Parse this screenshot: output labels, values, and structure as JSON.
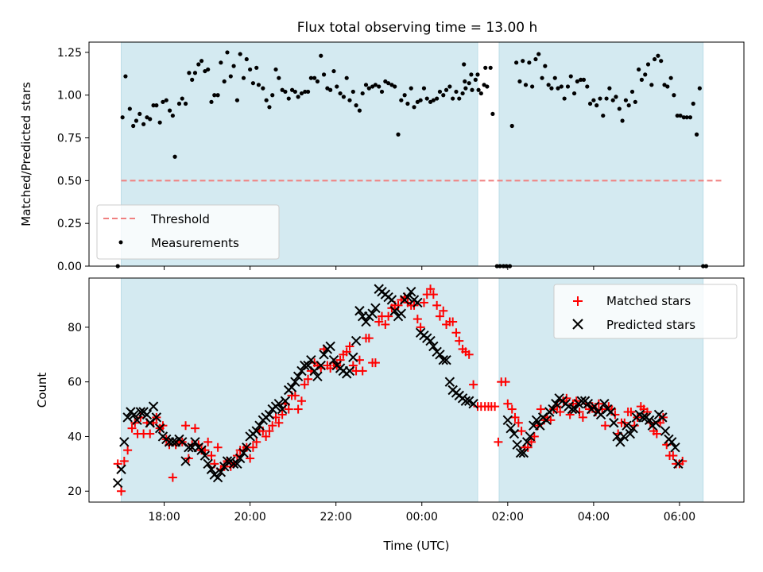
{
  "chart_data": [
    {
      "type": "scatter",
      "title": "Flux total observing time = 13.00 h",
      "xlabel": "",
      "ylabel": "Matched/Predicted stars",
      "xlim": [
        16.25,
        31.5
      ],
      "ylim": [
        0.0,
        1.31
      ],
      "yticks": [
        0.0,
        0.25,
        0.5,
        0.75,
        1.0,
        1.25
      ],
      "ytick_labels": [
        "0.00",
        "0.25",
        "0.50",
        "0.75",
        "1.00",
        "1.25"
      ],
      "xticks": [
        18,
        20,
        22,
        24,
        26,
        28,
        30
      ],
      "shaded_spans": [
        [
          17.0,
          25.3
        ],
        [
          25.8,
          30.55
        ]
      ],
      "threshold": {
        "name": "Threshold",
        "value": 0.5,
        "x_range": [
          17.0,
          31.0
        ],
        "color": "#f08080"
      },
      "legend_position": "lower-left",
      "series": [
        {
          "name": "Measurements",
          "marker": "dot",
          "color": "#000000",
          "points": [
            [
              16.92,
              0.0
            ],
            [
              17.03,
              0.87
            ],
            [
              17.1,
              1.11
            ],
            [
              17.2,
              0.92
            ],
            [
              17.28,
              0.82
            ],
            [
              17.35,
              0.85
            ],
            [
              17.43,
              0.89
            ],
            [
              17.52,
              0.83
            ],
            [
              17.6,
              0.87
            ],
            [
              17.67,
              0.86
            ],
            [
              17.75,
              0.94
            ],
            [
              17.82,
              0.94
            ],
            [
              17.9,
              0.84
            ],
            [
              17.97,
              0.96
            ],
            [
              18.05,
              0.97
            ],
            [
              18.13,
              0.91
            ],
            [
              18.2,
              0.88
            ],
            [
              18.25,
              0.64
            ],
            [
              18.35,
              0.95
            ],
            [
              18.42,
              0.98
            ],
            [
              18.5,
              0.95
            ],
            [
              18.58,
              1.13
            ],
            [
              18.65,
              1.09
            ],
            [
              18.72,
              1.13
            ],
            [
              18.8,
              1.18
            ],
            [
              18.87,
              1.2
            ],
            [
              18.95,
              1.14
            ],
            [
              19.02,
              1.15
            ],
            [
              19.1,
              0.96
            ],
            [
              19.17,
              1.0
            ],
            [
              19.25,
              1.0
            ],
            [
              19.32,
              1.19
            ],
            [
              19.4,
              1.08
            ],
            [
              19.47,
              1.25
            ],
            [
              19.55,
              1.11
            ],
            [
              19.62,
              1.17
            ],
            [
              19.7,
              0.97
            ],
            [
              19.77,
              1.24
            ],
            [
              19.85,
              1.1
            ],
            [
              19.92,
              1.21
            ],
            [
              20.0,
              1.15
            ],
            [
              20.07,
              1.07
            ],
            [
              20.15,
              1.16
            ],
            [
              20.2,
              1.06
            ],
            [
              20.3,
              1.04
            ],
            [
              20.38,
              0.97
            ],
            [
              20.45,
              0.93
            ],
            [
              20.52,
              1.0
            ],
            [
              20.6,
              1.15
            ],
            [
              20.67,
              1.1
            ],
            [
              20.75,
              1.03
            ],
            [
              20.82,
              1.02
            ],
            [
              20.9,
              0.98
            ],
            [
              20.98,
              1.03
            ],
            [
              21.05,
              1.02
            ],
            [
              21.12,
              0.99
            ],
            [
              21.2,
              1.01
            ],
            [
              21.28,
              1.02
            ],
            [
              21.35,
              1.02
            ],
            [
              21.42,
              1.1
            ],
            [
              21.5,
              1.1
            ],
            [
              21.57,
              1.08
            ],
            [
              21.65,
              1.23
            ],
            [
              21.72,
              1.12
            ],
            [
              21.8,
              1.04
            ],
            [
              21.87,
              1.03
            ],
            [
              21.95,
              1.14
            ],
            [
              22.02,
              1.05
            ],
            [
              22.1,
              1.01
            ],
            [
              22.18,
              0.99
            ],
            [
              22.25,
              1.1
            ],
            [
              22.32,
              0.97
            ],
            [
              22.4,
              1.02
            ],
            [
              22.47,
              0.94
            ],
            [
              22.55,
              0.91
            ],
            [
              22.62,
              1.01
            ],
            [
              22.7,
              1.06
            ],
            [
              22.77,
              1.04
            ],
            [
              22.85,
              1.05
            ],
            [
              22.92,
              1.06
            ],
            [
              23.0,
              1.05
            ],
            [
              23.07,
              1.02
            ],
            [
              23.15,
              1.08
            ],
            [
              23.22,
              1.07
            ],
            [
              23.3,
              1.06
            ],
            [
              23.37,
              1.05
            ],
            [
              23.45,
              0.77
            ],
            [
              23.52,
              0.97
            ],
            [
              23.6,
              1.0
            ],
            [
              23.67,
              0.95
            ],
            [
              23.75,
              1.04
            ],
            [
              23.82,
              0.93
            ],
            [
              23.9,
              0.96
            ],
            [
              23.97,
              0.97
            ],
            [
              24.05,
              1.04
            ],
            [
              24.12,
              0.98
            ],
            [
              24.2,
              0.96
            ],
            [
              24.27,
              0.97
            ],
            [
              24.35,
              0.98
            ],
            [
              24.42,
              1.02
            ],
            [
              24.5,
              1.0
            ],
            [
              24.57,
              1.03
            ],
            [
              24.65,
              1.05
            ],
            [
              24.72,
              0.98
            ],
            [
              24.8,
              1.02
            ],
            [
              24.87,
              0.98
            ],
            [
              24.95,
              1.01
            ],
            [
              25.02,
              1.04
            ],
            [
              25.1,
              1.07
            ],
            [
              25.17,
              1.03
            ],
            [
              25.25,
              1.09
            ],
            [
              25.32,
              1.03
            ],
            [
              25.38,
              1.01
            ],
            [
              25.45,
              1.06
            ],
            [
              25.52,
              1.05
            ],
            [
              25.6,
              1.16
            ],
            [
              25.0,
              1.08
            ],
            [
              25.15,
              1.12
            ],
            [
              25.3,
              1.12
            ],
            [
              24.98,
              1.18
            ],
            [
              25.48,
              1.16
            ],
            [
              25.65,
              0.89
            ],
            [
              25.75,
              0.0
            ],
            [
              25.82,
              0.0
            ],
            [
              25.9,
              0.0
            ],
            [
              25.97,
              0.0
            ],
            [
              26.05,
              0.0
            ],
            [
              26.1,
              0.82
            ],
            [
              26.2,
              1.19
            ],
            [
              26.28,
              1.08
            ],
            [
              26.35,
              1.2
            ],
            [
              26.42,
              1.06
            ],
            [
              26.5,
              1.19
            ],
            [
              26.57,
              1.05
            ],
            [
              26.65,
              1.21
            ],
            [
              26.72,
              1.24
            ],
            [
              26.8,
              1.1
            ],
            [
              26.87,
              1.17
            ],
            [
              26.95,
              1.06
            ],
            [
              27.02,
              1.04
            ],
            [
              27.1,
              1.1
            ],
            [
              27.17,
              1.04
            ],
            [
              27.25,
              1.05
            ],
            [
              27.32,
              0.98
            ],
            [
              27.4,
              1.05
            ],
            [
              27.47,
              1.11
            ],
            [
              27.55,
              1.01
            ],
            [
              27.62,
              1.08
            ],
            [
              27.7,
              1.09
            ],
            [
              27.77,
              1.09
            ],
            [
              27.85,
              1.05
            ],
            [
              27.92,
              0.95
            ],
            [
              28.0,
              0.97
            ],
            [
              28.07,
              0.94
            ],
            [
              28.15,
              0.98
            ],
            [
              28.22,
              0.88
            ],
            [
              28.3,
              0.98
            ],
            [
              28.37,
              1.04
            ],
            [
              28.45,
              0.97
            ],
            [
              28.52,
              0.99
            ],
            [
              28.6,
              0.92
            ],
            [
              28.67,
              0.85
            ],
            [
              28.75,
              0.97
            ],
            [
              28.82,
              0.94
            ],
            [
              28.9,
              1.02
            ],
            [
              28.97,
              0.96
            ],
            [
              29.05,
              1.15
            ],
            [
              29.12,
              1.09
            ],
            [
              29.2,
              1.12
            ],
            [
              29.27,
              1.18
            ],
            [
              29.35,
              1.06
            ],
            [
              29.42,
              1.21
            ],
            [
              29.5,
              1.23
            ],
            [
              29.57,
              1.2
            ],
            [
              29.65,
              1.06
            ],
            [
              29.72,
              1.05
            ],
            [
              29.8,
              1.1
            ],
            [
              29.87,
              1.0
            ],
            [
              29.95,
              0.88
            ],
            [
              30.02,
              0.88
            ],
            [
              30.1,
              0.87
            ],
            [
              30.17,
              0.87
            ],
            [
              30.25,
              0.87
            ],
            [
              30.32,
              0.95
            ],
            [
              30.4,
              0.77
            ],
            [
              30.47,
              1.04
            ],
            [
              30.55,
              0.0
            ],
            [
              30.62,
              0.0
            ]
          ]
        }
      ]
    },
    {
      "type": "scatter",
      "title": "",
      "xlabel": "Time (UTC)",
      "ylabel": "Count",
      "xlim": [
        16.25,
        31.5
      ],
      "ylim": [
        16,
        98
      ],
      "yticks": [
        20,
        40,
        60,
        80
      ],
      "ytick_labels": [
        "20",
        "40",
        "60",
        "80"
      ],
      "xticks": [
        18,
        20,
        22,
        24,
        26,
        28,
        30
      ],
      "xtick_labels": [
        "18:00",
        "20:00",
        "22:00",
        "00:00",
        "02:00",
        "04:00",
        "06:00"
      ],
      "shaded_spans": [
        [
          17.0,
          25.3
        ],
        [
          25.8,
          30.55
        ]
      ],
      "legend_position": "top-right",
      "series": [
        {
          "name": "Matched stars",
          "marker": "plus",
          "color": "#ff0000",
          "points": []
        },
        {
          "name": "Predicted stars",
          "marker": "x",
          "color": "#000000",
          "points": []
        }
      ]
    }
  ]
}
